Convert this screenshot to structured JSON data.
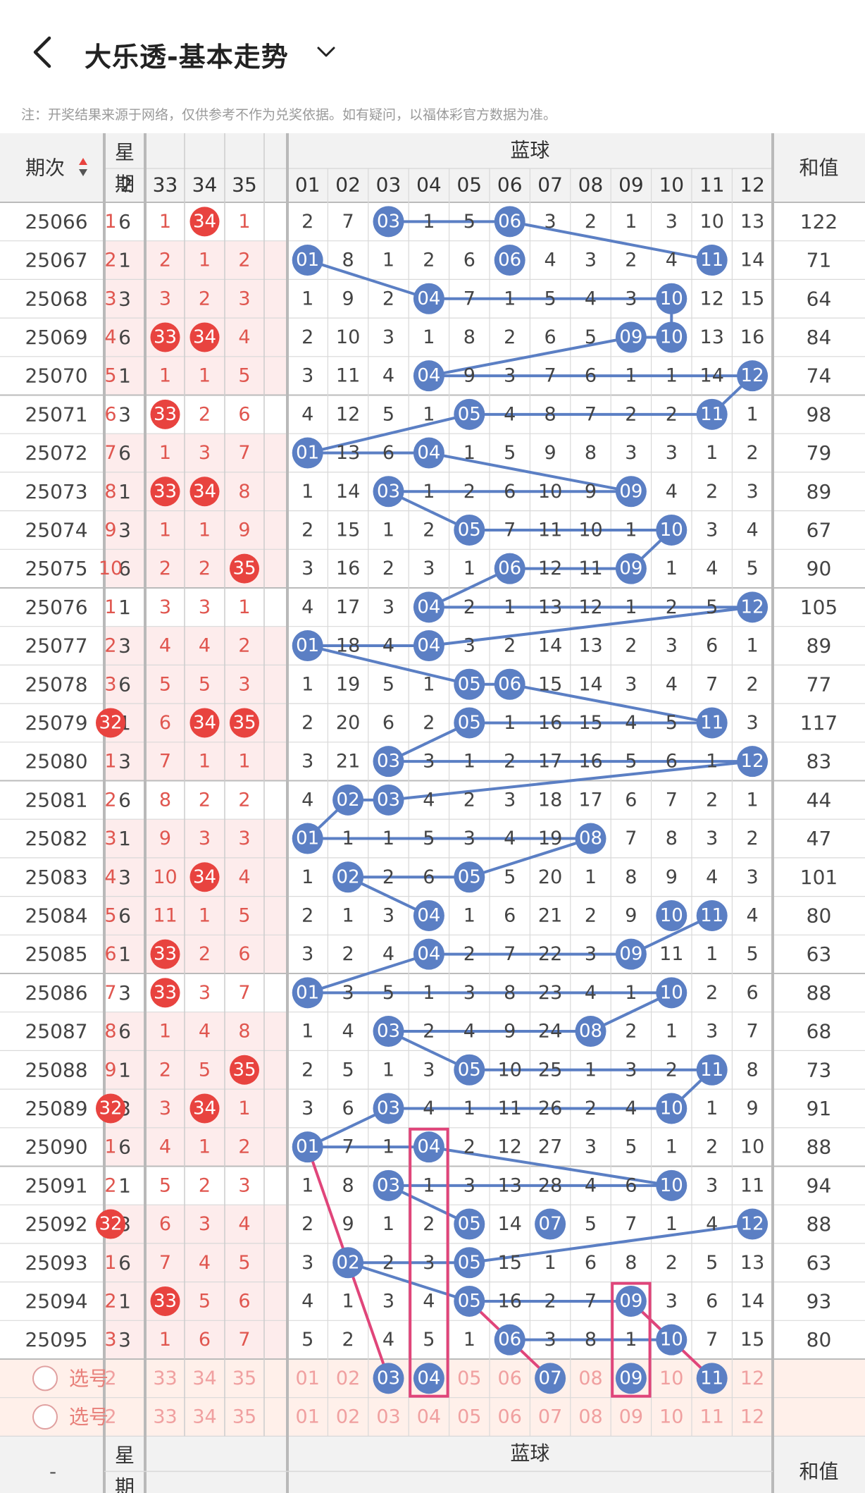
{
  "header": {
    "title": "大乐透-基本走势",
    "back_icon": "back-arrow-icon",
    "dropdown_icon": "chevron-down-icon"
  },
  "notice": "注：开奖结果来源于网络，仅供参考不作为兑奖依据。如有疑问，以福体彩官方数据为准。",
  "table": {
    "col_issue": "期次",
    "col_week_1": "星",
    "col_week_2": "期",
    "blue_group": "蓝球",
    "col_sum": "和值",
    "front_cols": [
      "2",
      "33",
      "34",
      "35"
    ],
    "blue_cols": [
      "01",
      "02",
      "03",
      "04",
      "05",
      "06",
      "07",
      "08",
      "09",
      "10",
      "11",
      "12"
    ],
    "rows": [
      {
        "issue": "25066",
        "week": "6",
        "front": [
          "1",
          "1",
          "34",
          "1"
        ],
        "blue": [
          "2",
          "7",
          "03",
          "1",
          "5",
          "06",
          "3",
          "2",
          "1",
          "3",
          "10",
          "13"
        ],
        "sum": "122"
      },
      {
        "issue": "25067",
        "week": "1",
        "front": [
          "2",
          "2",
          "1",
          "2"
        ],
        "blue": [
          "01",
          "8",
          "1",
          "2",
          "6",
          "06",
          "4",
          "3",
          "2",
          "4",
          "11",
          "14"
        ],
        "sum": "71"
      },
      {
        "issue": "25068",
        "week": "3",
        "front": [
          "3",
          "3",
          "2",
          "3"
        ],
        "blue": [
          "1",
          "9",
          "2",
          "04",
          "7",
          "1",
          "5",
          "4",
          "3",
          "10",
          "12",
          "15"
        ],
        "sum": "64"
      },
      {
        "issue": "25069",
        "week": "6",
        "front": [
          "4",
          "33",
          "34",
          "4"
        ],
        "blue": [
          "2",
          "10",
          "3",
          "1",
          "8",
          "2",
          "6",
          "5",
          "09",
          "10",
          "13",
          "16"
        ],
        "sum": "84"
      },
      {
        "issue": "25070",
        "week": "1",
        "front": [
          "5",
          "1",
          "1",
          "5"
        ],
        "blue": [
          "3",
          "11",
          "4",
          "04",
          "9",
          "3",
          "7",
          "6",
          "1",
          "1",
          "14",
          "12"
        ],
        "sum": "74"
      },
      {
        "issue": "25071",
        "week": "3",
        "front": [
          "6",
          "33",
          "2",
          "6"
        ],
        "blue": [
          "4",
          "12",
          "5",
          "1",
          "05",
          "4",
          "8",
          "7",
          "2",
          "2",
          "11",
          "1"
        ],
        "sum": "98"
      },
      {
        "issue": "25072",
        "week": "6",
        "front": [
          "7",
          "1",
          "3",
          "7"
        ],
        "blue": [
          "01",
          "13",
          "6",
          "04",
          "1",
          "5",
          "9",
          "8",
          "3",
          "3",
          "1",
          "2"
        ],
        "sum": "79"
      },
      {
        "issue": "25073",
        "week": "1",
        "front": [
          "8",
          "33",
          "34",
          "8"
        ],
        "blue": [
          "1",
          "14",
          "03",
          "1",
          "2",
          "6",
          "10",
          "9",
          "09",
          "4",
          "2",
          "3"
        ],
        "sum": "89"
      },
      {
        "issue": "25074",
        "week": "3",
        "front": [
          "9",
          "1",
          "1",
          "9"
        ],
        "blue": [
          "2",
          "15",
          "1",
          "2",
          "05",
          "7",
          "11",
          "10",
          "1",
          "10",
          "3",
          "4"
        ],
        "sum": "67"
      },
      {
        "issue": "25075",
        "week": "6",
        "front": [
          "10",
          "2",
          "2",
          "35"
        ],
        "blue": [
          "3",
          "16",
          "2",
          "3",
          "1",
          "06",
          "12",
          "11",
          "09",
          "1",
          "4",
          "5"
        ],
        "sum": "90"
      },
      {
        "issue": "25076",
        "week": "1",
        "front": [
          "1",
          "3",
          "3",
          "1"
        ],
        "blue": [
          "4",
          "17",
          "3",
          "04",
          "2",
          "1",
          "13",
          "12",
          "1",
          "2",
          "5",
          "12"
        ],
        "sum": "105"
      },
      {
        "issue": "25077",
        "week": "3",
        "front": [
          "2",
          "4",
          "4",
          "2"
        ],
        "blue": [
          "01",
          "18",
          "4",
          "04",
          "3",
          "2",
          "14",
          "13",
          "2",
          "3",
          "6",
          "1"
        ],
        "sum": "89"
      },
      {
        "issue": "25078",
        "week": "6",
        "front": [
          "3",
          "5",
          "5",
          "3"
        ],
        "blue": [
          "1",
          "19",
          "5",
          "1",
          "05",
          "06",
          "15",
          "14",
          "3",
          "4",
          "7",
          "2"
        ],
        "sum": "77"
      },
      {
        "issue": "25079",
        "week": "1",
        "front": [
          "32",
          "6",
          "34",
          "35"
        ],
        "blue": [
          "2",
          "20",
          "6",
          "2",
          "05",
          "1",
          "16",
          "15",
          "4",
          "5",
          "11",
          "3"
        ],
        "sum": "117"
      },
      {
        "issue": "25080",
        "week": "3",
        "front": [
          "1",
          "7",
          "1",
          "1"
        ],
        "blue": [
          "3",
          "21",
          "03",
          "3",
          "1",
          "2",
          "17",
          "16",
          "5",
          "6",
          "1",
          "12"
        ],
        "sum": "83"
      },
      {
        "issue": "25081",
        "week": "6",
        "front": [
          "2",
          "8",
          "2",
          "2"
        ],
        "blue": [
          "4",
          "02",
          "03",
          "4",
          "2",
          "3",
          "18",
          "17",
          "6",
          "7",
          "2",
          "1"
        ],
        "sum": "44"
      },
      {
        "issue": "25082",
        "week": "1",
        "front": [
          "3",
          "9",
          "3",
          "3"
        ],
        "blue": [
          "01",
          "1",
          "1",
          "5",
          "3",
          "4",
          "19",
          "08",
          "7",
          "8",
          "3",
          "2"
        ],
        "sum": "47"
      },
      {
        "issue": "25083",
        "week": "3",
        "front": [
          "4",
          "10",
          "34",
          "4"
        ],
        "blue": [
          "1",
          "02",
          "2",
          "6",
          "05",
          "5",
          "20",
          "1",
          "8",
          "9",
          "4",
          "3"
        ],
        "sum": "101"
      },
      {
        "issue": "25084",
        "week": "6",
        "front": [
          "5",
          "11",
          "1",
          "5"
        ],
        "blue": [
          "2",
          "1",
          "3",
          "04",
          "1",
          "6",
          "21",
          "2",
          "9",
          "10",
          "11",
          "4"
        ],
        "sum": "80"
      },
      {
        "issue": "25085",
        "week": "1",
        "front": [
          "6",
          "33",
          "2",
          "6"
        ],
        "blue": [
          "3",
          "2",
          "4",
          "04",
          "2",
          "7",
          "22",
          "3",
          "09",
          "11",
          "1",
          "5"
        ],
        "sum": "63"
      },
      {
        "issue": "25086",
        "week": "3",
        "front": [
          "7",
          "33",
          "3",
          "7"
        ],
        "blue": [
          "01",
          "3",
          "5",
          "1",
          "3",
          "8",
          "23",
          "4",
          "1",
          "10",
          "2",
          "6"
        ],
        "sum": "88"
      },
      {
        "issue": "25087",
        "week": "6",
        "front": [
          "8",
          "1",
          "4",
          "8"
        ],
        "blue": [
          "1",
          "4",
          "03",
          "2",
          "4",
          "9",
          "24",
          "08",
          "2",
          "1",
          "3",
          "7"
        ],
        "sum": "68"
      },
      {
        "issue": "25088",
        "week": "1",
        "front": [
          "9",
          "2",
          "5",
          "35"
        ],
        "blue": [
          "2",
          "5",
          "1",
          "3",
          "05",
          "10",
          "25",
          "1",
          "3",
          "2",
          "11",
          "8"
        ],
        "sum": "73"
      },
      {
        "issue": "25089",
        "week": "3",
        "front": [
          "32",
          "3",
          "34",
          "1"
        ],
        "blue": [
          "3",
          "6",
          "03",
          "4",
          "1",
          "11",
          "26",
          "2",
          "4",
          "10",
          "1",
          "9"
        ],
        "sum": "91"
      },
      {
        "issue": "25090",
        "week": "6",
        "front": [
          "1",
          "4",
          "1",
          "2"
        ],
        "blue": [
          "01",
          "7",
          "1",
          "04",
          "2",
          "12",
          "27",
          "3",
          "5",
          "1",
          "2",
          "10"
        ],
        "sum": "88"
      },
      {
        "issue": "25091",
        "week": "1",
        "front": [
          "2",
          "5",
          "2",
          "3"
        ],
        "blue": [
          "1",
          "8",
          "03",
          "1",
          "3",
          "13",
          "28",
          "4",
          "6",
          "10",
          "3",
          "11"
        ],
        "sum": "94"
      },
      {
        "issue": "25092",
        "week": "3",
        "front": [
          "32",
          "6",
          "3",
          "4"
        ],
        "blue": [
          "2",
          "9",
          "1",
          "2",
          "05",
          "14",
          "07",
          "5",
          "7",
          "1",
          "4",
          "12"
        ],
        "sum": "88"
      },
      {
        "issue": "25093",
        "week": "6",
        "front": [
          "1",
          "7",
          "4",
          "5"
        ],
        "blue": [
          "3",
          "02",
          "2",
          "3",
          "05",
          "15",
          "1",
          "6",
          "8",
          "2",
          "5",
          "13"
        ],
        "sum": "63"
      },
      {
        "issue": "25094",
        "week": "1",
        "front": [
          "2",
          "33",
          "5",
          "6"
        ],
        "blue": [
          "4",
          "1",
          "3",
          "4",
          "05",
          "16",
          "2",
          "7",
          "09",
          "3",
          "6",
          "14"
        ],
        "sum": "93"
      },
      {
        "issue": "25095",
        "week": "3",
        "front": [
          "3",
          "1",
          "6",
          "7"
        ],
        "blue": [
          "5",
          "2",
          "4",
          "5",
          "1",
          "06",
          "3",
          "8",
          "1",
          "10",
          "7",
          "15"
        ],
        "sum": "80"
      }
    ],
    "select_label": "选号",
    "select_rows": [
      {
        "front": [
          "2",
          "33",
          "34",
          "35"
        ],
        "blue": [
          "01",
          "02",
          "03",
          "04",
          "05",
          "06",
          "07",
          "08",
          "09",
          "10",
          "11",
          "12"
        ],
        "picked": [
          "03",
          "04",
          "07",
          "09",
          "11"
        ]
      },
      {
        "front": [
          "2",
          "33",
          "34",
          "35"
        ],
        "blue": [
          "01",
          "02",
          "03",
          "04",
          "05",
          "06",
          "07",
          "08",
          "09",
          "10",
          "11",
          "12"
        ],
        "picked": []
      }
    ]
  },
  "colors": {
    "blue_ball": "#5b7fc4",
    "red_ball": "#e8433f",
    "pink_line": "#e0457a",
    "grid": "#d9d9d9",
    "stripe": "#fdecec",
    "select_bg": "#fff0ea"
  }
}
